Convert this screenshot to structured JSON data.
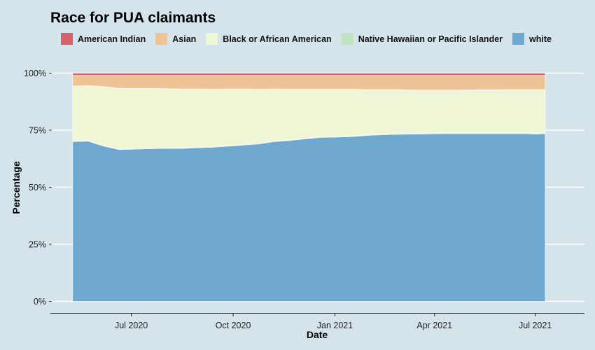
{
  "chart_data": {
    "type": "area",
    "stacked": true,
    "normalized": true,
    "title": "Race for PUA claimants",
    "xlabel": "Date",
    "ylabel": "Percentage",
    "ylim": [
      0,
      1
    ],
    "yticks": [
      0,
      0.25,
      0.5,
      0.75,
      1
    ],
    "ytick_labels": [
      "0%",
      "25%",
      "50%",
      "75%",
      "100%"
    ],
    "xticks": [
      "2020-07-01",
      "2020-10-01",
      "2021-01-01",
      "2021-04-01",
      "2021-07-01"
    ],
    "xtick_labels": [
      "Jul 2020",
      "Oct 2020",
      "Jan 2021",
      "Apr 2021",
      "Jul 2021"
    ],
    "xlim": [
      "2020-05-11",
      "2021-07-24"
    ],
    "grid": "horizontal major",
    "legend_position": "top",
    "dates": [
      "2020-05-09",
      "2020-05-23",
      "2020-06-06",
      "2020-06-20",
      "2020-07-04",
      "2020-07-18",
      "2020-08-01",
      "2020-08-15",
      "2020-08-29",
      "2020-09-12",
      "2020-09-26",
      "2020-10-10",
      "2020-10-24",
      "2020-11-07",
      "2020-11-21",
      "2020-12-05",
      "2020-12-19",
      "2021-01-02",
      "2021-01-16",
      "2021-01-30",
      "2021-02-13",
      "2021-02-27",
      "2021-03-13",
      "2021-03-27",
      "2021-04-10",
      "2021-04-24",
      "2021-05-08",
      "2021-05-22",
      "2021-06-05",
      "2021-06-19",
      "2021-07-03",
      "2021-07-10"
    ],
    "series": [
      {
        "name": "white",
        "color": "#6fa8cf",
        "values": [
          0.7,
          0.702,
          0.68,
          0.665,
          0.667,
          0.669,
          0.67,
          0.67,
          0.673,
          0.675,
          0.68,
          0.685,
          0.69,
          0.7,
          0.705,
          0.712,
          0.718,
          0.72,
          0.722,
          0.727,
          0.73,
          0.732,
          0.733,
          0.734,
          0.735,
          0.735,
          0.735,
          0.735,
          0.735,
          0.735,
          0.733,
          0.735
        ]
      },
      {
        "name": "Native Hawaiian or Pacific Islander",
        "color": "#c2e1c5",
        "values": [
          0.003,
          0.003,
          0.003,
          0.003,
          0.003,
          0.003,
          0.003,
          0.003,
          0.003,
          0.003,
          0.003,
          0.003,
          0.003,
          0.003,
          0.003,
          0.003,
          0.003,
          0.003,
          0.003,
          0.003,
          0.003,
          0.003,
          0.003,
          0.003,
          0.003,
          0.003,
          0.003,
          0.003,
          0.003,
          0.003,
          0.003,
          0.003
        ]
      },
      {
        "name": "Black or African American",
        "color": "#eff6d6",
        "values": [
          0.24,
          0.24,
          0.258,
          0.265,
          0.263,
          0.261,
          0.259,
          0.258,
          0.255,
          0.252,
          0.248,
          0.243,
          0.237,
          0.228,
          0.222,
          0.215,
          0.209,
          0.207,
          0.205,
          0.198,
          0.195,
          0.193,
          0.19,
          0.189,
          0.188,
          0.188,
          0.189,
          0.189,
          0.19,
          0.19,
          0.192,
          0.19
        ]
      },
      {
        "name": "Asian",
        "color": "#eec496",
        "values": [
          0.047,
          0.045,
          0.049,
          0.057,
          0.057,
          0.057,
          0.058,
          0.059,
          0.059,
          0.06,
          0.059,
          0.059,
          0.06,
          0.059,
          0.06,
          0.06,
          0.06,
          0.06,
          0.06,
          0.062,
          0.062,
          0.062,
          0.064,
          0.064,
          0.064,
          0.064,
          0.063,
          0.063,
          0.062,
          0.062,
          0.062,
          0.062
        ]
      },
      {
        "name": "American Indian",
        "color": "#d9636b",
        "values": [
          0.01,
          0.01,
          0.01,
          0.01,
          0.01,
          0.01,
          0.01,
          0.01,
          0.01,
          0.01,
          0.01,
          0.01,
          0.01,
          0.01,
          0.01,
          0.01,
          0.01,
          0.01,
          0.01,
          0.01,
          0.01,
          0.01,
          0.01,
          0.01,
          0.01,
          0.01,
          0.01,
          0.01,
          0.01,
          0.01,
          0.01,
          0.01
        ]
      }
    ]
  },
  "legend": [
    {
      "label": "American Indian",
      "color": "#d9636b"
    },
    {
      "label": "Asian",
      "color": "#eec496"
    },
    {
      "label": "Black or African American",
      "color": "#eff6d6"
    },
    {
      "label": "Native Hawaiian or Pacific Islander",
      "color": "#c2e1c5"
    },
    {
      "label": "white",
      "color": "#6fa8cf"
    }
  ]
}
